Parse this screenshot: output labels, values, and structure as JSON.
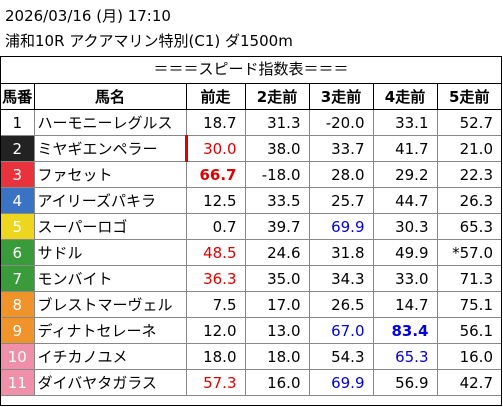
{
  "header": {
    "line1": "2026/03/16 (月) 17:10",
    "line2": "浦和10R アクアマリン特別(C1) ダ1500m"
  },
  "table_title": "＝＝＝スピード指数表＝＝＝",
  "columns": [
    "馬番",
    "馬名",
    "前走",
    "2走前",
    "3走前",
    "4走前",
    "5走前"
  ],
  "rows": [
    {
      "num": "1",
      "num_bg": "#ffffff",
      "num_fg": "#000000",
      "name": "ハーモニーレグルス",
      "v": [
        "18.7",
        "31.3",
        "-20.0",
        "33.1",
        "52.7"
      ],
      "style": [
        "",
        "",
        "",
        "",
        ""
      ]
    },
    {
      "num": "2",
      "num_bg": "#222222",
      "num_fg": "#ffffff",
      "name": "ミヤギエンペラー",
      "v": [
        "30.0",
        "38.0",
        "33.7",
        "41.7",
        "21.0"
      ],
      "style": [
        "red",
        "",
        "",
        "",
        ""
      ]
    },
    {
      "num": "3",
      "num_bg": "#e8333c",
      "num_fg": "#ffffff",
      "name": "ファセット",
      "v": [
        "66.7",
        "-18.0",
        "28.0",
        "29.2",
        "22.3"
      ],
      "style": [
        "red bold",
        "",
        "",
        "",
        ""
      ]
    },
    {
      "num": "4",
      "num_bg": "#3b73c4",
      "num_fg": "#ffffff",
      "name": "アイリーズパキラ",
      "v": [
        "12.5",
        "33.5",
        "25.7",
        "44.7",
        "26.3"
      ],
      "style": [
        "",
        "",
        "",
        "",
        ""
      ]
    },
    {
      "num": "5",
      "num_bg": "#ecd61e",
      "num_fg": "#ffffff",
      "name": "スーパーロゴ",
      "v": [
        "0.7",
        "39.7",
        "69.9",
        "30.3",
        "65.3"
      ],
      "style": [
        "",
        "",
        "blue",
        "",
        ""
      ]
    },
    {
      "num": "6",
      "num_bg": "#3a9b3a",
      "num_fg": "#ffffff",
      "name": "サドル",
      "v": [
        "48.5",
        "24.6",
        "31.8",
        "49.9",
        "*57.0"
      ],
      "style": [
        "red",
        "",
        "",
        "",
        ""
      ]
    },
    {
      "num": "7",
      "num_bg": "#3a9b3a",
      "num_fg": "#ffffff",
      "name": "モンバイト",
      "v": [
        "36.3",
        "35.0",
        "34.3",
        "33.0",
        "71.3"
      ],
      "style": [
        "red",
        "",
        "",
        "",
        ""
      ]
    },
    {
      "num": "8",
      "num_bg": "#f0932b",
      "num_fg": "#ffffff",
      "name": "ブレストマーヴェル",
      "v": [
        "7.5",
        "17.0",
        "26.5",
        "14.7",
        "75.1"
      ],
      "style": [
        "",
        "",
        "",
        "",
        ""
      ]
    },
    {
      "num": "9",
      "num_bg": "#f0932b",
      "num_fg": "#ffffff",
      "name": "ディナトセレーネ",
      "v": [
        "12.0",
        "13.0",
        "67.0",
        "83.4",
        "56.1"
      ],
      "style": [
        "",
        "",
        "blue",
        "blue bold",
        ""
      ]
    },
    {
      "num": "10",
      "num_bg": "#f08fa8",
      "num_fg": "#ffffff",
      "name": "イチカノユメ",
      "v": [
        "18.0",
        "18.0",
        "54.3",
        "65.3",
        "16.0"
      ],
      "style": [
        "",
        "",
        "",
        "blue",
        ""
      ]
    },
    {
      "num": "11",
      "num_bg": "#f08fa8",
      "num_fg": "#ffffff",
      "name": "ダイバヤタガラス",
      "v": [
        "57.3",
        "16.0",
        "69.9",
        "56.9",
        "42.7"
      ],
      "style": [
        "red",
        "",
        "blue",
        "",
        ""
      ]
    }
  ]
}
